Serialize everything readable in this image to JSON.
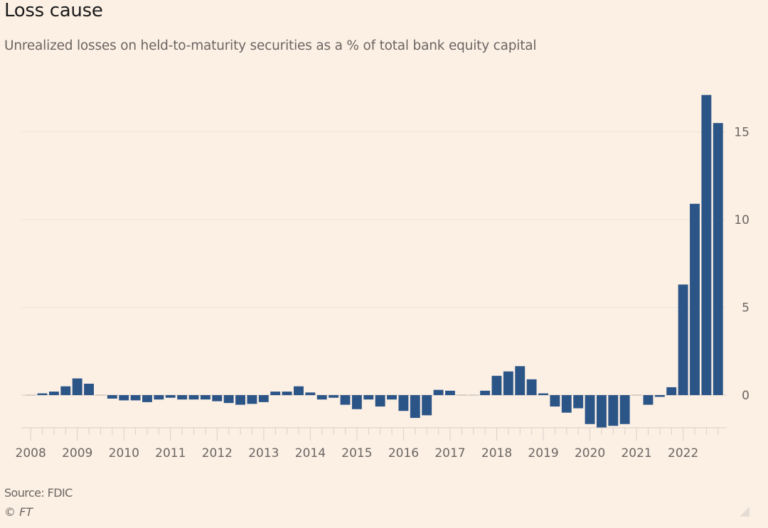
{
  "header": {
    "title": "Loss cause",
    "subtitle": "Unrealized losses on held-to-maturity securities as a % of total bank equity capital"
  },
  "footer": {
    "source": "Source: FDIC",
    "copyright": "© FT"
  },
  "colors": {
    "background": "#fcf0e5",
    "bar": "#2c5587",
    "gridline": "#ede3da",
    "axis": "#d9d0c8",
    "tick_text": "#6b6561"
  },
  "chart_data": {
    "type": "bar",
    "title": "Loss cause",
    "subtitle": "Unrealized losses on held-to-maturity securities as a % of total bank equity capital",
    "xlabel": "",
    "ylabel": "",
    "ylim": [
      -1.9,
      17.3
    ],
    "yticks": [
      0,
      5,
      10,
      15
    ],
    "y_axis_side": "right",
    "grid": true,
    "legend": "none",
    "x_tick_labels": [
      "2008",
      "2009",
      "2010",
      "2011",
      "2012",
      "2013",
      "2014",
      "2015",
      "2016",
      "2017",
      "2018",
      "2019",
      "2020",
      "2021",
      "2022"
    ],
    "categories": [
      "2008Q1",
      "2008Q2",
      "2008Q3",
      "2008Q4",
      "2009Q1",
      "2009Q2",
      "2009Q3",
      "2009Q4",
      "2010Q1",
      "2010Q2",
      "2010Q3",
      "2010Q4",
      "2011Q1",
      "2011Q2",
      "2011Q3",
      "2011Q4",
      "2012Q1",
      "2012Q2",
      "2012Q3",
      "2012Q4",
      "2013Q1",
      "2013Q2",
      "2013Q3",
      "2013Q4",
      "2014Q1",
      "2014Q2",
      "2014Q3",
      "2014Q4",
      "2015Q1",
      "2015Q2",
      "2015Q3",
      "2015Q4",
      "2016Q1",
      "2016Q2",
      "2016Q3",
      "2016Q4",
      "2017Q1",
      "2017Q2",
      "2017Q3",
      "2017Q4",
      "2018Q1",
      "2018Q2",
      "2018Q3",
      "2018Q4",
      "2019Q1",
      "2019Q2",
      "2019Q3",
      "2019Q4",
      "2020Q1",
      "2020Q2",
      "2020Q3",
      "2020Q4",
      "2021Q1",
      "2021Q2",
      "2021Q3",
      "2021Q4",
      "2022Q1",
      "2022Q2",
      "2022Q3",
      "2022Q4"
    ],
    "values": [
      -0.05,
      0.1,
      0.2,
      0.5,
      0.95,
      0.65,
      0.05,
      -0.2,
      -0.3,
      -0.3,
      -0.4,
      -0.25,
      -0.15,
      -0.25,
      -0.25,
      -0.25,
      -0.35,
      -0.45,
      -0.55,
      -0.5,
      -0.4,
      0.2,
      0.2,
      0.5,
      0.15,
      -0.25,
      -0.15,
      -0.55,
      -0.8,
      -0.25,
      -0.65,
      -0.25,
      -0.9,
      -1.3,
      -1.15,
      0.3,
      0.25,
      0.0,
      -0.05,
      0.25,
      1.1,
      1.35,
      1.65,
      0.9,
      0.1,
      -0.65,
      -1.0,
      -0.75,
      -1.65,
      -1.85,
      -1.75,
      -1.65,
      0.0,
      -0.55,
      -0.1,
      0.45,
      6.3,
      10.9,
      17.1,
      15.5
    ]
  }
}
